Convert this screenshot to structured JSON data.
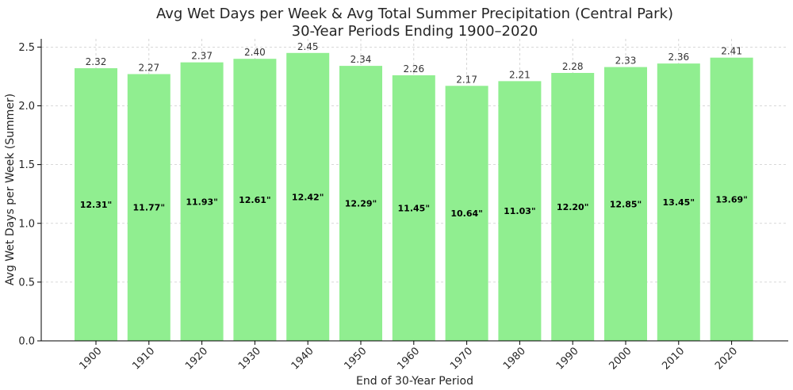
{
  "chart_data": {
    "type": "bar",
    "title": "Avg Wet Days per Week & Avg Total Summer Precipitation (Central Park)",
    "subtitle": "30-Year Periods Ending 1900–2020",
    "xlabel": "End of 30-Year Period",
    "ylabel": "Avg Wet Days per Week (Summer)",
    "categories": [
      "1900",
      "1910",
      "1920",
      "1930",
      "1940",
      "1950",
      "1960",
      "1970",
      "1980",
      "1990",
      "2000",
      "2010",
      "2020"
    ],
    "values": [
      2.32,
      2.27,
      2.37,
      2.4,
      2.45,
      2.34,
      2.26,
      2.17,
      2.21,
      2.28,
      2.33,
      2.36,
      2.41
    ],
    "value_labels": [
      "2.32",
      "2.27",
      "2.37",
      "2.40",
      "2.45",
      "2.34",
      "2.26",
      "2.17",
      "2.21",
      "2.28",
      "2.33",
      "2.36",
      "2.41"
    ],
    "precip_labels": [
      "12.31\"",
      "11.77\"",
      "11.93\"",
      "12.61\"",
      "12.42\"",
      "12.29\"",
      "11.45\"",
      "10.64\"",
      "11.03\"",
      "12.20\"",
      "12.85\"",
      "13.45\"",
      "13.69\""
    ],
    "yticks": [
      "0.0",
      "0.5",
      "1.0",
      "1.5",
      "2.0",
      "2.5"
    ],
    "ylim": [
      0,
      2.57
    ],
    "grid": true,
    "colors": {
      "bar": "#90ee90",
      "grid": "#cccccc",
      "axis": "#000000"
    }
  }
}
